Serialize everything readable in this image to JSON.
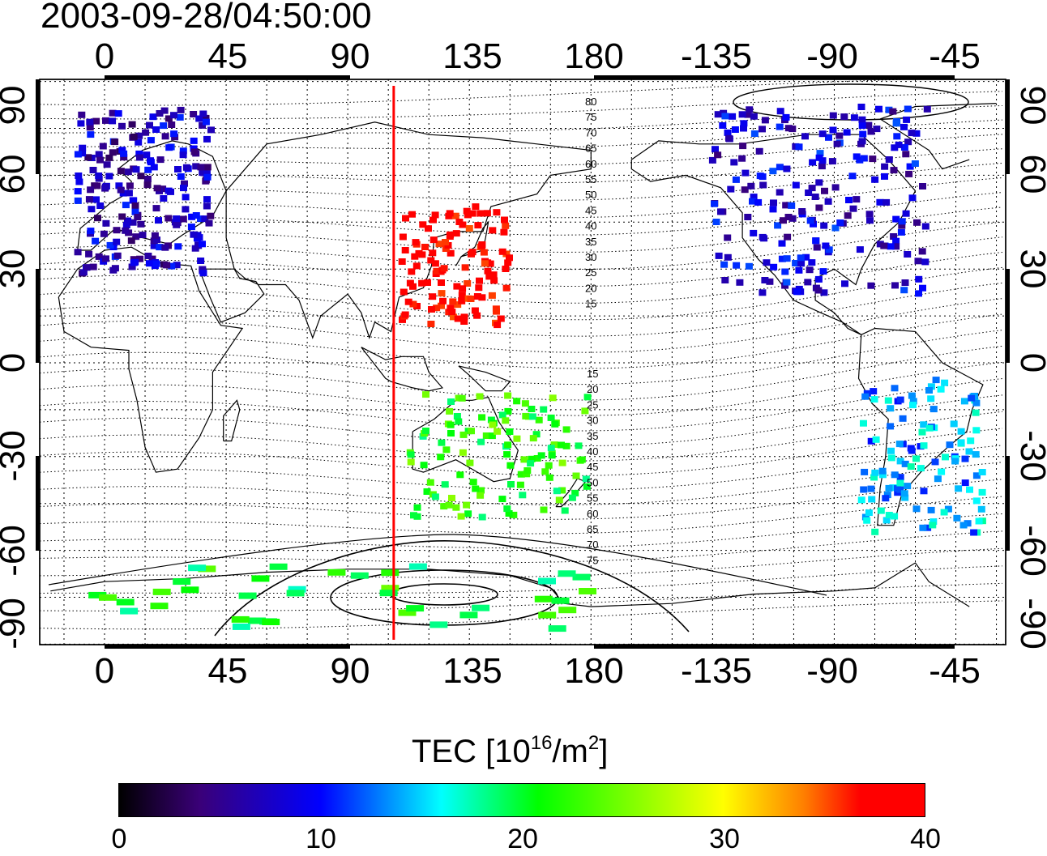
{
  "title": "2003-09-28/04:50:00",
  "map": {
    "lon_ticks": [
      "0",
      "45",
      "90",
      "135",
      "180",
      "-135",
      "-90",
      "-45"
    ],
    "lat_ticks": [
      "90",
      "60",
      "30",
      "0",
      "-30",
      "-60",
      "-90"
    ],
    "marker_longitude": 107,
    "contour_labels_north": [
      "80",
      "75",
      "70",
      "65",
      "60",
      "55",
      "50",
      "45",
      "40",
      "35",
      "30",
      "25",
      "20",
      "15"
    ],
    "contour_labels_south": [
      "15",
      "20",
      "25",
      "30",
      "35",
      "40",
      "45",
      "50",
      "55",
      "60",
      "65",
      "70",
      "75"
    ]
  },
  "colorbar": {
    "title": "TEC  [10",
    "exp": "16",
    "unit_mid": "/m",
    "unit_exp": "2",
    "close": "]",
    "ticks": [
      "0",
      "10",
      "20",
      "30",
      "40"
    ],
    "range": [
      0,
      40
    ]
  },
  "tec_regions": [
    {
      "name": "europe",
      "lon": [
        -10,
        40
      ],
      "lat": [
        28,
        82
      ],
      "tec": 7
    },
    {
      "name": "north-america",
      "lon": [
        -135,
        -55
      ],
      "lat": [
        22,
        82
      ],
      "tec": 8
    },
    {
      "name": "east-asia",
      "lon": [
        110,
        150
      ],
      "lat": [
        12,
        50
      ],
      "tec": 39
    },
    {
      "name": "australia",
      "lon": [
        113,
        180
      ],
      "lat": [
        -50,
        -10
      ],
      "tec": 22
    },
    {
      "name": "south-america",
      "lon": [
        -80,
        -35
      ],
      "lat": [
        -55,
        -5
      ],
      "tec": 14
    },
    {
      "name": "antarctica",
      "lon": [
        -20,
        180
      ],
      "lat": [
        -85,
        -65
      ],
      "tec": 21
    }
  ]
}
